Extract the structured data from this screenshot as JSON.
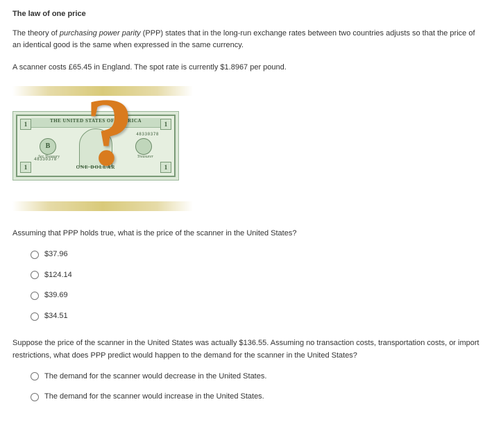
{
  "title": "The law of one price",
  "intro_part1": "The theory of ",
  "intro_italic": "purchasing power parity",
  "intro_part2": " (PPP) states that in the long-run exchange rates between two countries adjusts so that the price of an identical good is the same when expressed in the same currency.",
  "scenario": "A scanner costs £65.45 in England. The spot rate is currently $1.8967 per pound.",
  "bill": {
    "banner": "THE UNITED STATES OF AMERICA",
    "serial_tr": "48330378",
    "serial_bl": "48330378",
    "corner": "1",
    "seal_l": "B",
    "seal_r": "",
    "one_label": "ONE DOLLAR",
    "qmark": "?"
  },
  "q1": {
    "prompt": "Assuming that PPP holds true, what is the price of the scanner in the United States?",
    "options": [
      "$37.96",
      "$124.14",
      "$39.69",
      "$34.51"
    ]
  },
  "q2": {
    "prompt": "Suppose the price of the scanner in the United States was actually $136.55. Assuming no transaction costs, transportation costs, or import restrictions, what does PPP predict would happen to the demand for the scanner in the United States?",
    "options": [
      "The demand for the scanner would decrease in the United States.",
      "The demand for the scanner would increase in the United States."
    ]
  }
}
